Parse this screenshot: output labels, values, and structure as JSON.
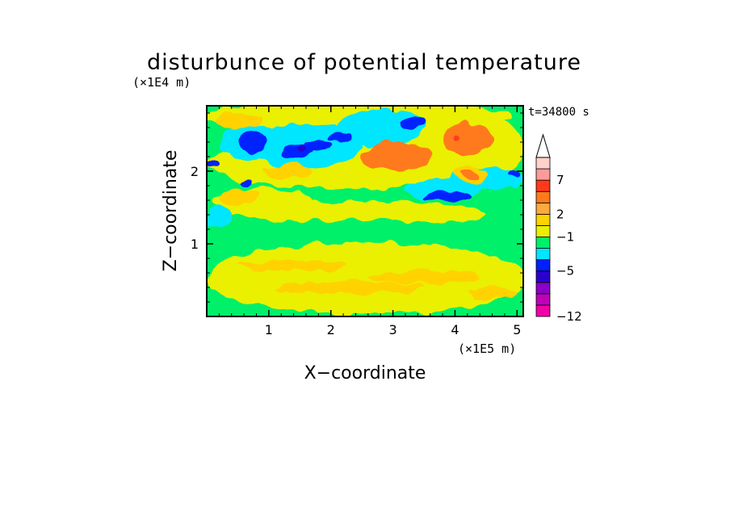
{
  "chart_data": {
    "type": "heatmap",
    "title": "disturbunce of potential temperature",
    "time_label": "t=34800 s",
    "xlabel": "X−coordinate",
    "ylabel": "Z−coordinate",
    "x_unit": "(×1E5 m)",
    "y_unit": "(×1E4 m)",
    "xlim": [
      0,
      5.1
    ],
    "ylim": [
      0,
      2.9
    ],
    "x_ticks": [
      {
        "value": 1,
        "label": "1"
      },
      {
        "value": 2,
        "label": "2"
      },
      {
        "value": 3,
        "label": "3"
      },
      {
        "value": 4,
        "label": "4"
      },
      {
        "value": 5,
        "label": "5"
      }
    ],
    "y_ticks": [
      {
        "value": 1,
        "label": "1"
      },
      {
        "value": 2,
        "label": "2"
      }
    ],
    "colorbar": {
      "labels": [
        {
          "value": -12,
          "label": "−12"
        },
        {
          "value": -5,
          "label": "−5"
        },
        {
          "value": -1,
          "label": "−1"
        },
        {
          "value": 2,
          "label": "2"
        },
        {
          "value": 7,
          "label": "7"
        }
      ],
      "colors": [
        "#f000a8",
        "#c000b8",
        "#8a00c8",
        "#2a00cc",
        "#0020ff",
        "#00e6ff",
        "#00f06a",
        "#eaf000",
        "#ffd200",
        "#ffa840",
        "#ff7a1a",
        "#ff3a1a",
        "#ff9a9a",
        "#ffd0cc"
      ],
      "extend_top": true
    },
    "background_color": "#00f06a",
    "regions": [
      {
        "level": 1,
        "cx": 2.6,
        "cy": 0.52,
        "rx": 2.6,
        "ry": 0.5
      },
      {
        "level": 2,
        "cx": 2.3,
        "cy": 0.4,
        "rx": 1.2,
        "ry": 0.08
      },
      {
        "level": 2,
        "cx": 3.5,
        "cy": 0.55,
        "rx": 0.9,
        "ry": 0.09
      },
      {
        "level": 2,
        "cx": 1.4,
        "cy": 0.7,
        "rx": 0.9,
        "ry": 0.07
      },
      {
        "level": 2,
        "cx": 4.6,
        "cy": 0.32,
        "rx": 0.4,
        "ry": 0.08
      },
      {
        "level": 1,
        "cx": 2.3,
        "cy": 1.45,
        "rx": 2.0,
        "ry": 0.14
      },
      {
        "level": 1,
        "cx": 0.9,
        "cy": 1.6,
        "rx": 0.8,
        "ry": 0.15
      },
      {
        "level": 1,
        "cx": 3.6,
        "cy": 1.42,
        "rx": 0.9,
        "ry": 0.12
      },
      {
        "level": 1,
        "cx": 2.0,
        "cy": 2.1,
        "rx": 2.0,
        "ry": 0.35
      },
      {
        "level": 1,
        "cx": 4.0,
        "cy": 2.3,
        "rx": 1.1,
        "ry": 0.55
      },
      {
        "level": 1,
        "cx": 2.4,
        "cy": 2.75,
        "rx": 2.5,
        "ry": 0.2
      },
      {
        "level": 2,
        "cx": 0.5,
        "cy": 1.65,
        "rx": 0.3,
        "ry": 0.1
      },
      {
        "level": 2,
        "cx": 1.3,
        "cy": 2.0,
        "rx": 0.4,
        "ry": 0.1
      },
      {
        "level": 3,
        "cx": 3.05,
        "cy": 2.2,
        "rx": 0.55,
        "ry": 0.2
      },
      {
        "level": 3,
        "cx": 4.2,
        "cy": 2.45,
        "rx": 0.4,
        "ry": 0.22
      },
      {
        "level": 2,
        "cx": 4.25,
        "cy": 1.95,
        "rx": 0.3,
        "ry": 0.1
      },
      {
        "level": 3,
        "cx": 4.25,
        "cy": 1.95,
        "rx": 0.15,
        "ry": 0.05
      },
      {
        "level": 4,
        "cx": 4.05,
        "cy": 2.45,
        "rx": 0.06,
        "ry": 0.05
      },
      {
        "level": 2,
        "cx": 0.5,
        "cy": 2.7,
        "rx": 0.4,
        "ry": 0.1
      },
      {
        "level": -1,
        "cx": 0.2,
        "cy": 1.4,
        "rx": 0.2,
        "ry": 0.15
      },
      {
        "level": -1,
        "cx": 0.7,
        "cy": 2.4,
        "rx": 0.5,
        "ry": 0.25
      },
      {
        "level": -1,
        "cx": 1.6,
        "cy": 2.35,
        "rx": 0.9,
        "ry": 0.3
      },
      {
        "level": -1,
        "cx": 2.8,
        "cy": 2.6,
        "rx": 0.7,
        "ry": 0.25
      },
      {
        "level": -1,
        "cx": 4.5,
        "cy": 1.9,
        "rx": 0.6,
        "ry": 0.15
      },
      {
        "level": -1,
        "cx": 3.8,
        "cy": 1.75,
        "rx": 0.6,
        "ry": 0.15
      },
      {
        "level": -2,
        "cx": 0.75,
        "cy": 2.4,
        "rx": 0.22,
        "ry": 0.14
      },
      {
        "level": -2,
        "cx": 1.45,
        "cy": 2.27,
        "rx": 0.25,
        "ry": 0.1
      },
      {
        "level": -2,
        "cx": 1.8,
        "cy": 2.35,
        "rx": 0.25,
        "ry": 0.08
      },
      {
        "level": -2,
        "cx": 2.15,
        "cy": 2.45,
        "rx": 0.18,
        "ry": 0.06
      },
      {
        "level": -2,
        "cx": 3.3,
        "cy": 2.65,
        "rx": 0.18,
        "ry": 0.08
      },
      {
        "level": -2,
        "cx": 3.9,
        "cy": 1.65,
        "rx": 0.4,
        "ry": 0.06
      },
      {
        "level": -2,
        "cx": 0.1,
        "cy": 2.1,
        "rx": 0.1,
        "ry": 0.06
      },
      {
        "level": -2,
        "cx": 0.65,
        "cy": 1.85,
        "rx": 0.08,
        "ry": 0.05
      },
      {
        "level": -2,
        "cx": 4.95,
        "cy": 1.95,
        "rx": 0.1,
        "ry": 0.05
      },
      {
        "level": -3,
        "cx": 1.5,
        "cy": 2.3,
        "rx": 0.1,
        "ry": 0.05
      }
    ]
  }
}
